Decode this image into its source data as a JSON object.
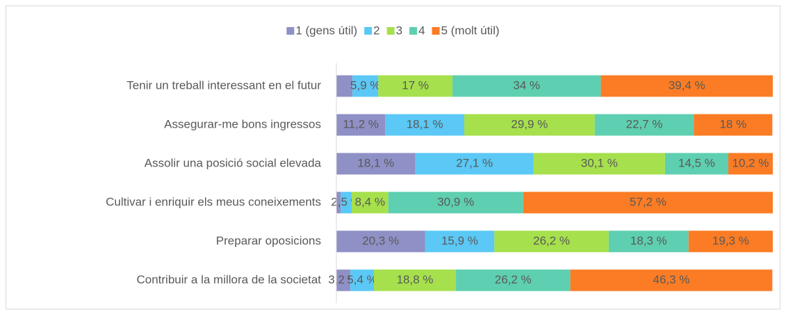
{
  "chart_data": {
    "type": "stacked_bar",
    "orientation": "horizontal",
    "categories": [
      "Tenir un treball interessant en el futur",
      "Assegurar-me bons ingressos",
      "Assolir una posició social elevada",
      "Cultivar i enriquir els meus coneixements",
      "Preparar oposicions",
      "Contribuir a la millora de la societat"
    ],
    "xlim": [
      0,
      100
    ],
    "legend": "top",
    "series": [
      {
        "name": "1 (gens útil)",
        "color": "#8f90c6",
        "values": [
          3.7,
          11.2,
          18.1,
          1,
          20.3,
          3.2
        ],
        "value_labels": [
          null,
          "11,2 %",
          "18,1 %",
          null,
          "20,3 %",
          "3,2 %"
        ]
      },
      {
        "name": "2",
        "color": "#5bc8f5",
        "values": [
          5.9,
          18.1,
          27.1,
          2.5,
          15.9,
          5.4
        ],
        "value_labels": [
          "5,9 %",
          "18,1 %",
          "27,1 %",
          "2,5 %",
          "15,9 %",
          "5,4 %"
        ]
      },
      {
        "name": "3",
        "color": "#a6e04c",
        "values": [
          17,
          29.9,
          30.1,
          8.4,
          26.2,
          18.8
        ],
        "value_labels": [
          "17 %",
          "29,9 %",
          "30,1 %",
          "8,4 %",
          "26,2 %",
          "18,8 %"
        ]
      },
      {
        "name": "4",
        "color": "#5ecfb0",
        "values": [
          34,
          22.7,
          14.5,
          30.9,
          18.3,
          26.2
        ],
        "value_labels": [
          "34 %",
          "22,7 %",
          "14,5 %",
          "30,9 %",
          "18,3 %",
          "26,2 %"
        ]
      },
      {
        "name": "5 (molt útil)",
        "color": "#fb7c24",
        "values": [
          39.4,
          18,
          10.2,
          57.2,
          19.3,
          46.3
        ],
        "value_labels": [
          "39,4 %",
          "18 %",
          "10,2 %",
          "57,2 %",
          "19,3 %",
          "46,3 %"
        ]
      }
    ]
  }
}
